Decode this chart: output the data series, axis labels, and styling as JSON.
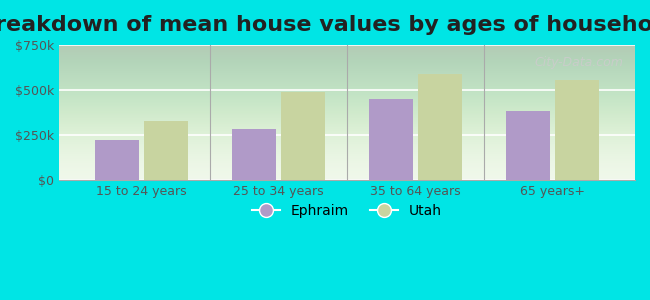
{
  "title": "Breakdown of mean house values by ages of householders",
  "categories": [
    "15 to 24 years",
    "25 to 34 years",
    "35 to 64 years",
    "65 years+"
  ],
  "ephraim_values": [
    225000,
    285000,
    450000,
    385000
  ],
  "utah_values": [
    330000,
    490000,
    590000,
    555000
  ],
  "ephraim_color": "#b09ac8",
  "utah_color": "#c8d4a0",
  "ylim": [
    0,
    750000
  ],
  "yticks": [
    0,
    250000,
    500000,
    750000
  ],
  "ytick_labels": [
    "$0",
    "$250k",
    "$500k",
    "$750k"
  ],
  "background_color": "#00e5e5",
  "plot_bg_color": "#eef7e8",
  "title_fontsize": 16,
  "legend_labels": [
    "Ephraim",
    "Utah"
  ],
  "watermark": "City-Data.com"
}
